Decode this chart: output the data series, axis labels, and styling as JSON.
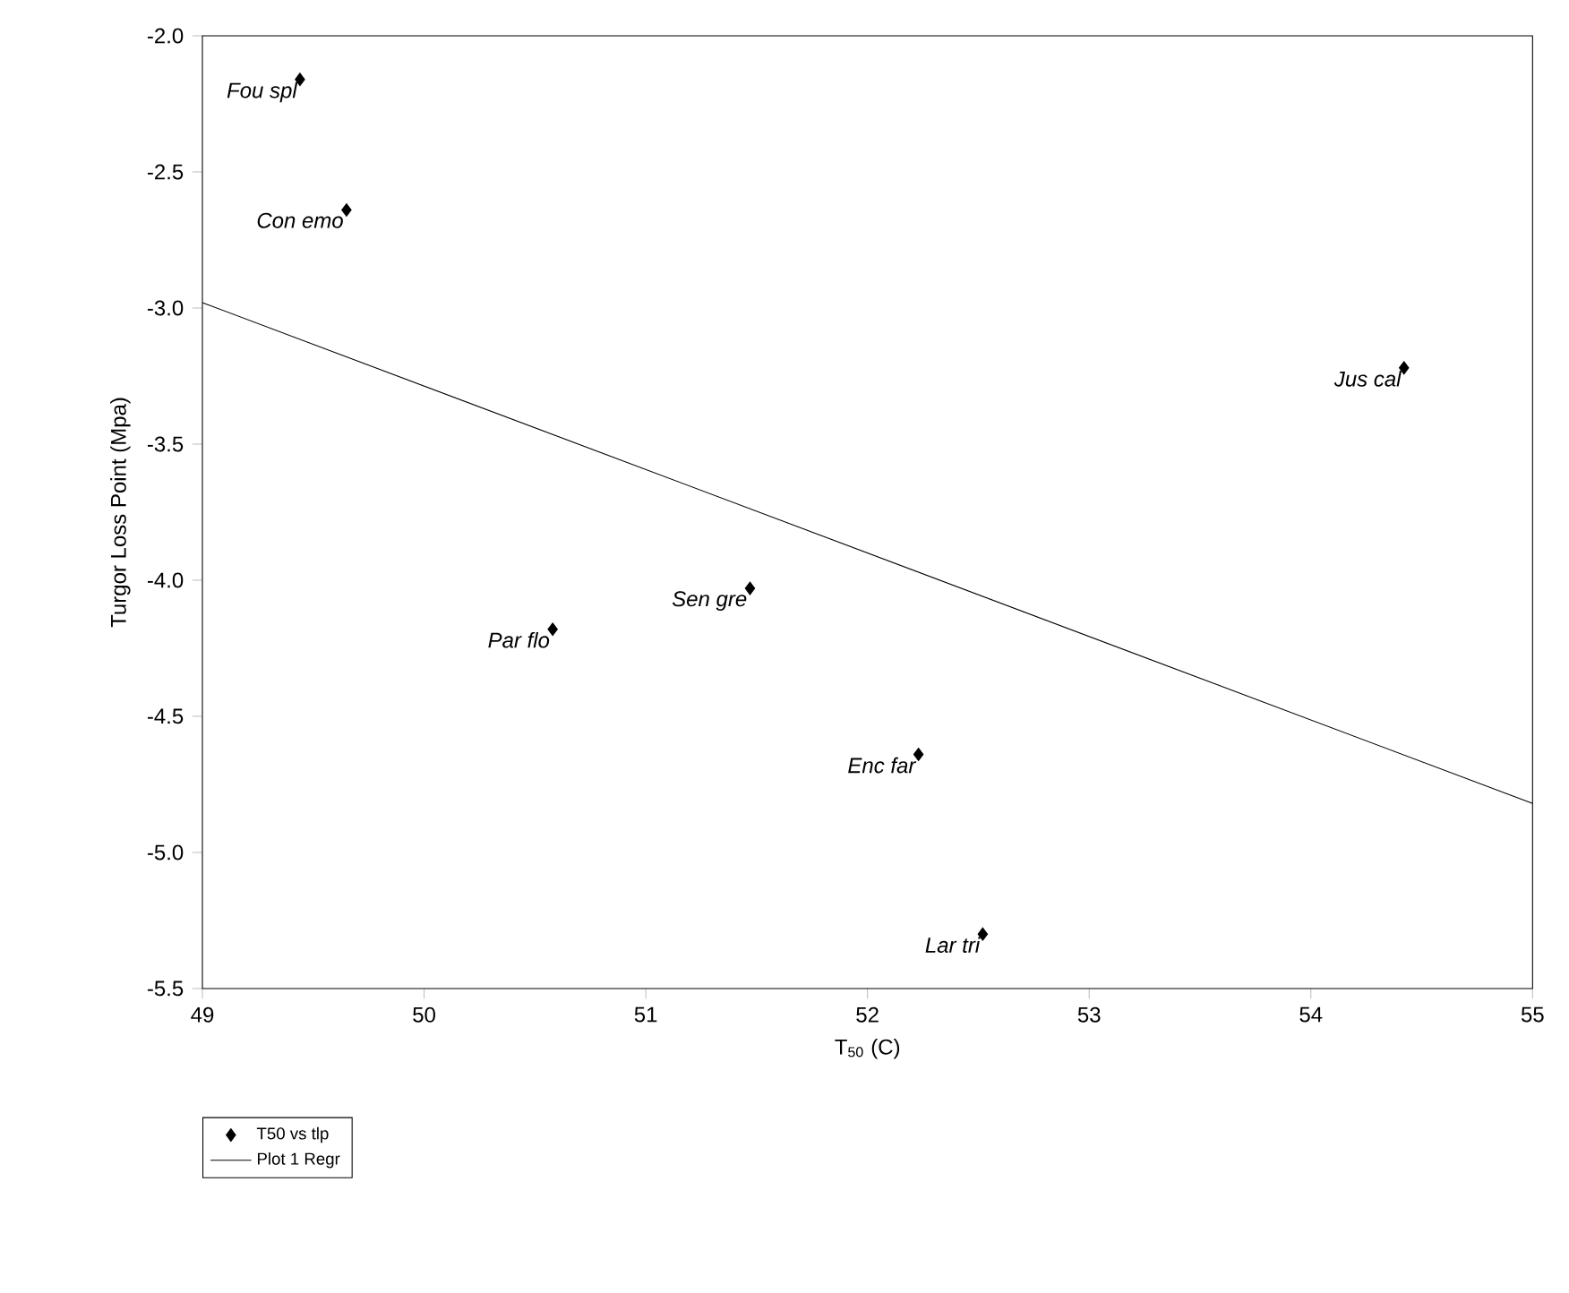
{
  "chart_data": {
    "type": "scatter",
    "xlabel": "T$_{50}$ (C)",
    "ylabel": "Turgor Loss Point (Mpa)",
    "xlim": [
      49,
      55
    ],
    "xticks": [
      49,
      50,
      51,
      52,
      53,
      54,
      55
    ],
    "ylim": [
      -5.5,
      -2.0
    ],
    "yticks": [
      {
        "value": -5.5,
        "label": "-5.5"
      },
      {
        "value": -5.0,
        "label": "-5.0"
      },
      {
        "value": -4.5,
        "label": "-4.5"
      },
      {
        "value": -4.0,
        "label": "-4.0"
      },
      {
        "value": -3.5,
        "label": "-3.5"
      },
      {
        "value": -3.0,
        "label": "-3.0"
      },
      {
        "value": -2.5,
        "label": "-2.5"
      },
      {
        "value": -2.0,
        "label": "-2.0"
      }
    ],
    "grid": false,
    "legend": "bottom left",
    "marker": "diamond",
    "series": [
      {
        "name": "T50 vs tlp",
        "color": "#000000",
        "x": [
          49.44,
          49.65,
          54.42,
          51.47,
          50.58,
          52.23,
          52.52
        ],
        "values": [
          -2.16,
          -2.64,
          -3.22,
          -4.03,
          -4.18,
          -4.64,
          -5.3
        ]
      },
      {
        "name": "Plot 1 Regr",
        "type": "line",
        "color": "#000000",
        "line_style": "solid",
        "marker": "none",
        "x": [
          49,
          55
        ],
        "values": [
          -2.98,
          -4.82
        ]
      }
    ],
    "annotations": [
      {
        "text": "Fou spl",
        "x": 49.44,
        "y": -2.16
      },
      {
        "text": "Con emo",
        "x": 49.65,
        "y": -2.64
      },
      {
        "text": "Jus cal",
        "x": 54.42,
        "y": -3.22
      },
      {
        "text": "Sen gre",
        "x": 51.47,
        "y": -4.03
      },
      {
        "text": "Par flo",
        "x": 50.58,
        "y": -4.18
      },
      {
        "text": "Enc far",
        "x": 52.23,
        "y": -4.64
      },
      {
        "text": "Lar tri",
        "x": 52.52,
        "y": -5.3
      }
    ]
  }
}
